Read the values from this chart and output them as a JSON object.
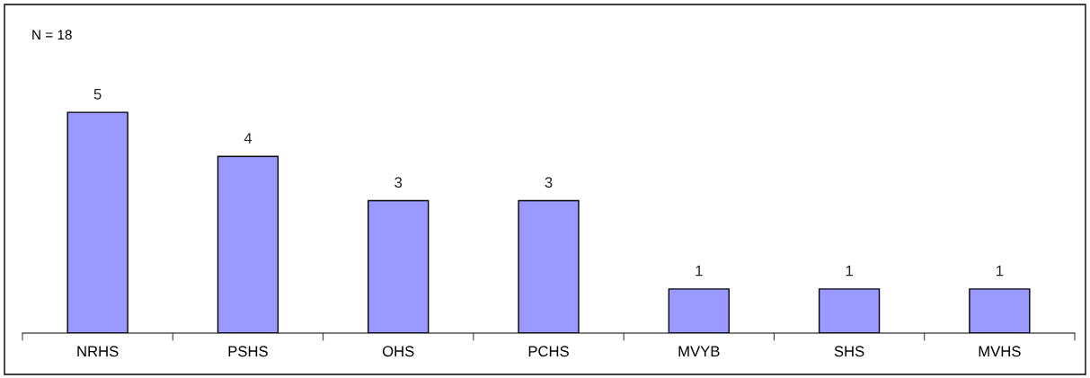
{
  "chart_data": {
    "type": "bar",
    "categories": [
      "NRHS",
      "PSHS",
      "OHS",
      "PCHS",
      "MVYB",
      "SHS",
      "MVHS"
    ],
    "values": [
      5,
      4,
      3,
      3,
      1,
      1,
      1
    ],
    "color": "#9999ff",
    "data_labels": true,
    "grid": false,
    "legend": false,
    "annotations": [
      "N = 18"
    ]
  }
}
